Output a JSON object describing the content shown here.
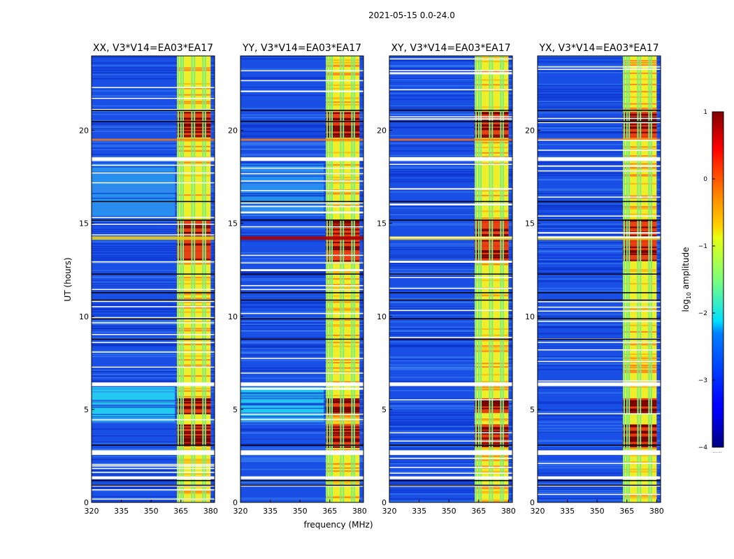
{
  "figure": {
    "suptitle": "2021-05-15 0.0-24.0",
    "xlabel": "frequency (MHz)",
    "ylabel": "UT (hours)",
    "colorbar_label_prefix": "log",
    "colorbar_label_sub": "10",
    "colorbar_label_suffix": " amplitude",
    "colorbar_dots": "......"
  },
  "chart_data": {
    "type": "heatmap",
    "title": "2021-05-15 0.0-24.0",
    "xlabel": "frequency (MHz)",
    "ylabel": "UT (hours)",
    "xlim": [
      320,
      382
    ],
    "ylim": [
      0,
      24
    ],
    "xticks": [
      320,
      335,
      350,
      365,
      380
    ],
    "yticks": [
      0,
      5,
      10,
      15,
      20
    ],
    "panels": [
      {
        "title": "XX, V3*V14=EA03*EA17",
        "pol": "XX",
        "cross": false
      },
      {
        "title": "YY, V3*V14=EA03*EA17",
        "pol": "YY",
        "cross": false
      },
      {
        "title": "XY, V3*V14=EA03*EA17",
        "pol": "XY",
        "cross": true
      },
      {
        "title": "YX, V3*V14=EA03*EA17",
        "pol": "YX",
        "cross": true
      }
    ],
    "colorbar": {
      "label": "log10 amplitude",
      "vmin": -4,
      "vmax": 1,
      "ticks": [
        1,
        0,
        -1,
        -2,
        -3,
        -4
      ],
      "tick_labels": [
        "1",
        "0",
        "−1",
        "−2",
        "−3",
        "−4"
      ],
      "colormap": "jet"
    },
    "bright_band_mhz": [
      363,
      380
    ],
    "bright_columns_mhz": [
      363.3,
      364.7,
      365.8,
      370.2,
      371.5,
      375.8,
      377.0
    ],
    "strong_rfi_hours": [
      [
        13.0,
        15.2
      ],
      [
        19.6,
        21.0
      ],
      [
        3.0,
        4.2
      ],
      [
        4.8,
        5.6
      ]
    ],
    "white_gap_hours": [
      [
        18.35,
        18.55
      ],
      [
        6.25,
        6.45
      ],
      [
        2.55,
        2.8
      ],
      [
        1.25,
        1.4
      ],
      [
        0.85,
        0.95
      ]
    ],
    "black_line_hours": [
      0.95,
      1.2,
      3.1,
      8.8,
      9.9,
      10.9,
      11.3,
      12.3,
      15.2,
      16.2,
      20.5,
      21.1
    ]
  }
}
